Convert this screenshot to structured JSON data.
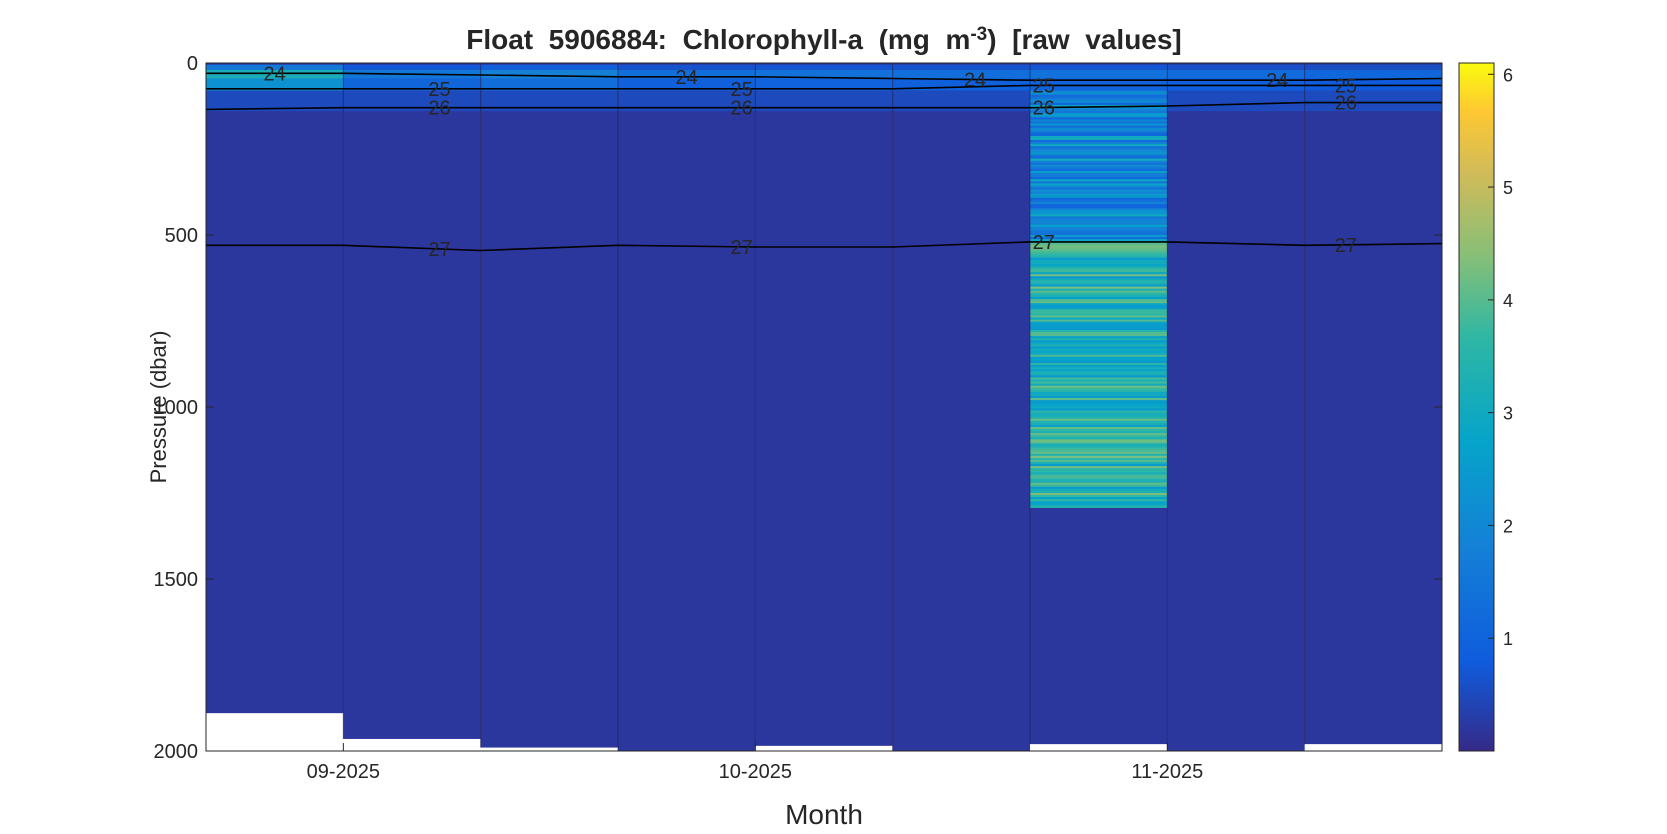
{
  "chart_data": {
    "type": "heatmap",
    "title": {
      "prefix": "Float  5906884:  Chlorophyll-a  (mg  m",
      "superscript": "-3",
      "suffix": ")  [raw  values]"
    },
    "xlabel": "Month",
    "ylabel": "Pressure (dbar)",
    "y_reversed": true,
    "ylim": [
      0,
      2000
    ],
    "y_ticks": [
      0,
      500,
      1000,
      1500,
      2000
    ],
    "x_ticks": [
      "09-2025",
      "10-2025",
      "11-2025"
    ],
    "x_tick_profile_index": [
      1,
      4,
      7
    ],
    "colormap": "parula",
    "colorbar": {
      "min": 0,
      "max": 6.1,
      "ticks": [
        1,
        2,
        3,
        4,
        5,
        6
      ]
    },
    "grid": false,
    "profiles": [
      {
        "max_pressure": 1890,
        "surface_chl": 3.2,
        "deep_chl": 0.2,
        "anomalous": false
      },
      {
        "max_pressure": 1965,
        "surface_chl": 1.5,
        "deep_chl": 0.2,
        "anomalous": false
      },
      {
        "max_pressure": 1990,
        "surface_chl": 1.8,
        "deep_chl": 0.2,
        "anomalous": false
      },
      {
        "max_pressure": 2000,
        "surface_chl": 1.3,
        "deep_chl": 0.2,
        "anomalous": false
      },
      {
        "max_pressure": 1985,
        "surface_chl": 1.4,
        "deep_chl": 0.2,
        "anomalous": false
      },
      {
        "max_pressure": 2000,
        "surface_chl": 1.3,
        "deep_chl": 0.2,
        "anomalous": false
      },
      {
        "max_pressure": 1980,
        "surface_chl": 1.4,
        "deep_chl": 0.2,
        "anomalous": true,
        "anomaly_to_pressure": 1290
      },
      {
        "max_pressure": 2000,
        "surface_chl": 1.2,
        "deep_chl": 0.2,
        "anomalous": false
      },
      {
        "max_pressure": 1980,
        "surface_chl": 1.1,
        "deep_chl": 0.2,
        "anomalous": false
      }
    ],
    "density_contours": [
      {
        "label": "24",
        "pressures": [
          30,
          30,
          35,
          40,
          40,
          45,
          50,
          50,
          50,
          45
        ],
        "label_positions": [
          0.5,
          3.5,
          5.6,
          7.8
        ]
      },
      {
        "label": "25",
        "pressures": [
          75,
          75,
          75,
          75,
          75,
          75,
          65,
          65,
          65,
          65
        ],
        "label_positions": [
          1.7,
          3.9,
          6.1,
          8.3
        ]
      },
      {
        "label": "26",
        "pressures": [
          135,
          130,
          130,
          130,
          130,
          130,
          130,
          125,
          115,
          115
        ],
        "label_positions": [
          1.7,
          3.9,
          6.1,
          8.3
        ]
      },
      {
        "label": "27",
        "pressures": [
          530,
          530,
          545,
          530,
          535,
          535,
          520,
          520,
          530,
          525
        ],
        "label_positions": [
          1.7,
          3.9,
          6.1,
          8.3
        ]
      }
    ]
  }
}
